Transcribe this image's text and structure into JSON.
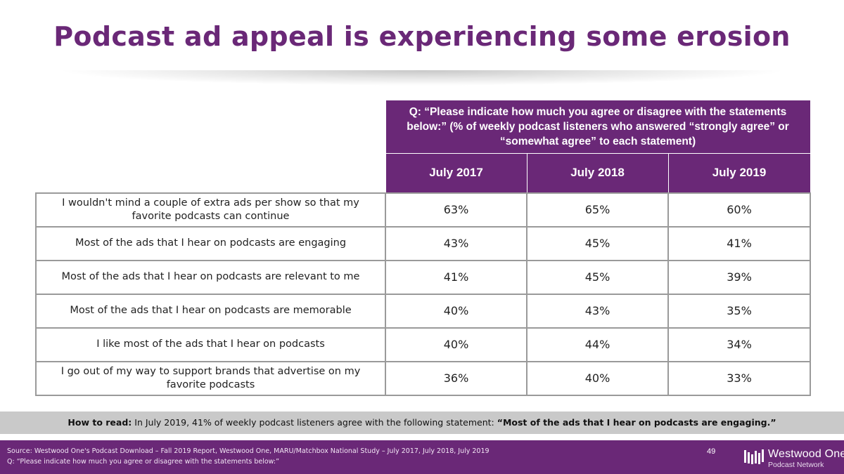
{
  "title": "Podcast ad appeal is experiencing some erosion",
  "table": {
    "question": "Q: “Please indicate how much you agree or disagree with the statements below:” (% of weekly podcast listeners who answered “strongly agree” or “somewhat agree” to each statement)",
    "columns": [
      "July 2017",
      "July 2018",
      "July 2019"
    ],
    "rows": [
      {
        "statement": "I wouldn't mind a couple of extra ads per show so that my favorite podcasts can continue",
        "values": [
          "63%",
          "65%",
          "60%"
        ]
      },
      {
        "statement": "Most of the ads that I hear on podcasts are engaging",
        "values": [
          "43%",
          "45%",
          "41%"
        ]
      },
      {
        "statement": "Most of the ads that I hear on podcasts are relevant to me",
        "values": [
          "41%",
          "45%",
          "39%"
        ]
      },
      {
        "statement": "Most of the ads that I hear on podcasts are memorable",
        "values": [
          "40%",
          "43%",
          "35%"
        ]
      },
      {
        "statement": "I like most of the ads that I hear on podcasts",
        "values": [
          "40%",
          "44%",
          "34%"
        ]
      },
      {
        "statement": "I go out of my way to support brands that advertise on my favorite podcasts",
        "values": [
          "36%",
          "40%",
          "33%"
        ]
      }
    ]
  },
  "how_to_read": {
    "label": "How to read:",
    "text": " In July 2019, 41% of weekly podcast listeners agree with the following statement: ",
    "quote": "“Most of the ads that I hear on podcasts are engaging.”"
  },
  "footer": {
    "source": "Source: Westwood One's Podcast Download – Fall 2019 Report, Westwood One, MARU/Matchbox National Study – July 2017, July 2018, July 2019",
    "question_note": "Q: “Please indicate how much you agree or disagree with the statements below:”",
    "page_number": "49",
    "logo_name": "Westwood One",
    "logo_sub": "Podcast Network"
  },
  "colors": {
    "brand_purple": "#6a2877",
    "how_to_read_bg": "#c9c9c9",
    "cell_border": "#9a9a9a"
  }
}
